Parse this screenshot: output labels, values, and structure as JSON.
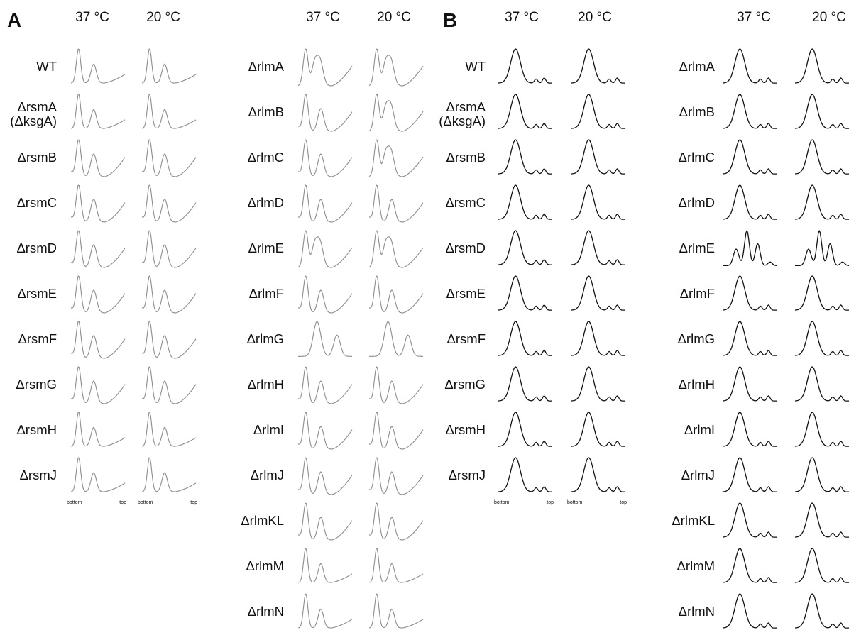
{
  "panels": [
    {
      "letter": "A",
      "style": "gray",
      "columns": [
        {
          "temps": [
            "37 °C",
            "20 °C"
          ],
          "axis": {
            "left": "bottom",
            "right": "top"
          },
          "rows": [
            {
              "label": "WT",
              "profiles": [
                "B",
                "B"
              ]
            },
            {
              "label": "ΔrsmA",
              "label2": "(ΔksgA)",
              "profiles": [
                "B",
                "B"
              ]
            },
            {
              "label": "ΔrsmB",
              "profiles": [
                "A",
                "A"
              ]
            },
            {
              "label": "ΔrsmC",
              "profiles": [
                "A",
                "A"
              ]
            },
            {
              "label": "ΔrsmD",
              "profiles": [
                "A",
                "A"
              ]
            },
            {
              "label": "ΔrsmE",
              "profiles": [
                "A",
                "A"
              ]
            },
            {
              "label": "ΔrsmF",
              "profiles": [
                "A",
                "A"
              ]
            },
            {
              "label": "ΔrsmG",
              "profiles": [
                "A",
                "A"
              ]
            },
            {
              "label": "ΔrsmH",
              "profiles": [
                "B",
                "B"
              ]
            },
            {
              "label": "ΔrsmJ",
              "profiles": [
                "B",
                "B"
              ]
            }
          ]
        },
        {
          "temps": [
            "37 °C",
            "20 °C"
          ],
          "axis": {
            "left": "bottom",
            "right": "top"
          },
          "rows": [
            {
              "label": "ΔrlmA",
              "profiles": [
                "C",
                "C"
              ]
            },
            {
              "label": "ΔrlmB",
              "profiles": [
                "A",
                "C"
              ]
            },
            {
              "label": "ΔrlmC",
              "profiles": [
                "A",
                "C"
              ]
            },
            {
              "label": "ΔrlmD",
              "profiles": [
                "A",
                "A"
              ]
            },
            {
              "label": "ΔrlmE",
              "profiles": [
                "C",
                "C"
              ]
            },
            {
              "label": "ΔrlmF",
              "profiles": [
                "A",
                "A"
              ]
            },
            {
              "label": "ΔrlmG",
              "profiles": [
                "G",
                "G"
              ]
            },
            {
              "label": "ΔrlmH",
              "profiles": [
                "A",
                "A"
              ]
            },
            {
              "label": "ΔrlmI",
              "profiles": [
                "A",
                "A"
              ]
            },
            {
              "label": "ΔrlmJ",
              "profiles": [
                "A",
                "A"
              ]
            },
            {
              "label": "ΔrlmKL",
              "profiles": [
                "A",
                "A"
              ]
            },
            {
              "label": "ΔrlmM",
              "profiles": [
                "B",
                "B"
              ]
            },
            {
              "label": "ΔrlmN",
              "profiles": [
                "B",
                "B"
              ]
            }
          ]
        }
      ]
    },
    {
      "letter": "B",
      "style": "black",
      "columns": [
        {
          "temps": [
            "37 °C",
            "20 °C"
          ],
          "axis": {
            "left": "bottom",
            "right": "top"
          },
          "rows": [
            {
              "label": "WT",
              "profiles": [
                "P",
                "P"
              ]
            },
            {
              "label": "ΔrsmA",
              "label2": "(ΔksgA)",
              "profiles": [
                "P",
                "P"
              ]
            },
            {
              "label": "ΔrsmB",
              "profiles": [
                "P",
                "P"
              ]
            },
            {
              "label": "ΔrsmC",
              "profiles": [
                "P",
                "P"
              ]
            },
            {
              "label": "ΔrsmD",
              "profiles": [
                "P",
                "P"
              ]
            },
            {
              "label": "ΔrsmE",
              "profiles": [
                "P",
                "P"
              ]
            },
            {
              "label": "ΔrsmF",
              "profiles": [
                "P",
                "P"
              ]
            },
            {
              "label": "ΔrsmG",
              "profiles": [
                "P",
                "P"
              ]
            },
            {
              "label": "ΔrsmH",
              "profiles": [
                "P",
                "P"
              ]
            },
            {
              "label": "ΔrsmJ",
              "profiles": [
                "P",
                "P"
              ]
            }
          ]
        },
        {
          "temps": [
            "37 °C",
            "20 °C"
          ],
          "axis": {
            "left": "bottom",
            "right": "top"
          },
          "rows": [
            {
              "label": "ΔrlmA",
              "profiles": [
                "P",
                "P"
              ]
            },
            {
              "label": "ΔrlmB",
              "profiles": [
                "P",
                "P"
              ]
            },
            {
              "label": "ΔrlmC",
              "profiles": [
                "P",
                "P"
              ]
            },
            {
              "label": "ΔrlmD",
              "profiles": [
                "P",
                "P"
              ]
            },
            {
              "label": "ΔrlmE",
              "profiles": [
                "E",
                "E"
              ]
            },
            {
              "label": "ΔrlmF",
              "profiles": [
                "P",
                "P"
              ]
            },
            {
              "label": "ΔrlmG",
              "profiles": [
                "P",
                "P"
              ]
            },
            {
              "label": "ΔrlmH",
              "profiles": [
                "P",
                "P"
              ]
            },
            {
              "label": "ΔrlmI",
              "profiles": [
                "P",
                "P"
              ]
            },
            {
              "label": "ΔrlmJ",
              "profiles": [
                "P",
                "P"
              ]
            },
            {
              "label": "ΔrlmKL",
              "profiles": [
                "P",
                "P"
              ]
            },
            {
              "label": "ΔrlmM",
              "profiles": [
                "P",
                "P"
              ]
            },
            {
              "label": "ΔrlmN",
              "profiles": [
                "P",
                "P"
              ]
            }
          ]
        }
      ]
    }
  ],
  "colors": {
    "gray_trace": "#8c8c8c",
    "black_trace": "#111111",
    "text": "#111111"
  }
}
